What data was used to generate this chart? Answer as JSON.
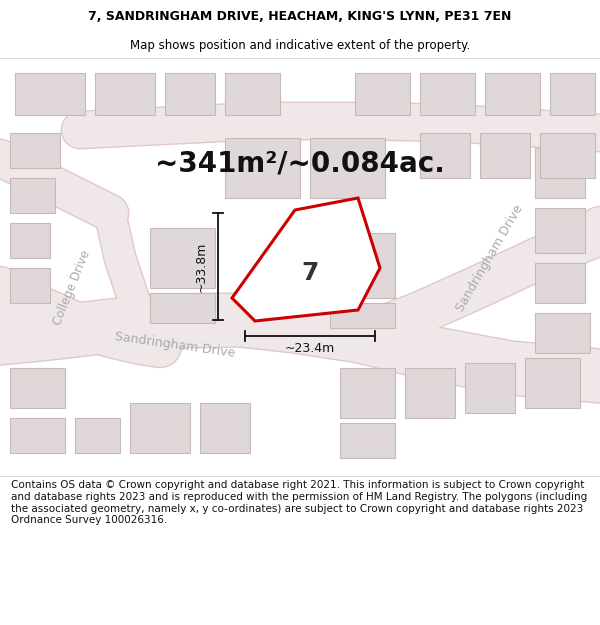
{
  "title_line1": "7, SANDRINGHAM DRIVE, HEACHAM, KING'S LYNN, PE31 7EN",
  "title_line2": "Map shows position and indicative extent of the property.",
  "area_text": "~341m²/~0.084ac.",
  "dim_width": "~23.4m",
  "dim_height": "~33.8m",
  "plot_number": "7",
  "map_bg": "#f5f2f2",
  "bldg_fill": "#e0d8d8",
  "bldg_edge": "#c8b8b8",
  "road_fill": "#f0e8e8",
  "road_line": "#e0c8c8",
  "plot_line_color": "#cc0000",
  "plot_fill_color": "#ffffff",
  "dim_line_color": "#111111",
  "street_label_color": "#aaaaaa",
  "footer_text": "Contains OS data © Crown copyright and database right 2021. This information is subject to Crown copyright and database rights 2023 and is reproduced with the permission of HM Land Registry. The polygons (including the associated geometry, namely x, y co-ordinates) are subject to Crown copyright and database rights 2023 Ordnance Survey 100026316.",
  "title_fontsize": 9,
  "area_fontsize": 20,
  "footer_fontsize": 7.5,
  "plot_label_fontsize": 18,
  "dim_fontsize": 9,
  "street_fontsize": 9
}
